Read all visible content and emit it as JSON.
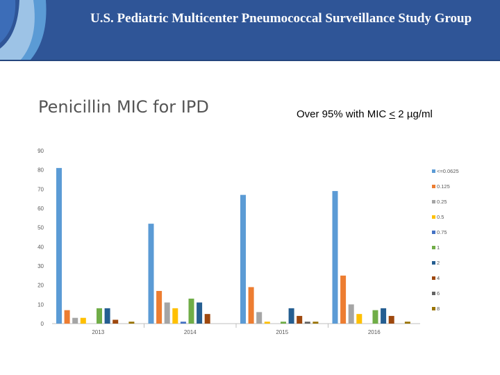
{
  "header": {
    "title": "U.S. Pediatric Multicenter Pneumococcal Surveillance Study Group"
  },
  "slide": {
    "title": "Penicillin MIC for IPD",
    "subtitle_prefix": "Over 95% with MIC ",
    "subtitle_symbol": "<",
    "subtitle_suffix": " 2 µg/ml"
  },
  "colors": {
    "banner": "#2f5597",
    "logo_light": "#9dc3e6",
    "logo_mid": "#5b9bd5"
  },
  "chart_data": {
    "type": "bar",
    "title": "",
    "xlabel": "",
    "ylabel": "",
    "ylim": [
      0,
      90
    ],
    "yticks": [
      0,
      10,
      20,
      30,
      40,
      50,
      60,
      70,
      80,
      90
    ],
    "grid": false,
    "legend_position": "right",
    "categories": [
      "2013",
      "2014",
      "2015",
      "2016"
    ],
    "series": [
      {
        "name": "<=0.0625",
        "color": "#5b9bd5",
        "values": [
          81,
          52,
          67,
          69
        ]
      },
      {
        "name": "0.125",
        "color": "#ed7d31",
        "values": [
          7,
          17,
          19,
          25
        ]
      },
      {
        "name": "0.25",
        "color": "#a5a5a5",
        "values": [
          3,
          11,
          6,
          10
        ]
      },
      {
        "name": "0.5",
        "color": "#ffc000",
        "values": [
          3,
          8,
          1,
          5
        ]
      },
      {
        "name": "0.75",
        "color": "#4472c4",
        "values": [
          0,
          1,
          0,
          0
        ]
      },
      {
        "name": "1",
        "color": "#70ad47",
        "values": [
          8,
          13,
          1,
          7
        ]
      },
      {
        "name": "2",
        "color": "#255e91",
        "values": [
          8,
          11,
          8,
          8
        ]
      },
      {
        "name": "4",
        "color": "#9e480e",
        "values": [
          2,
          5,
          4,
          4
        ]
      },
      {
        "name": "6",
        "color": "#636363",
        "values": [
          0,
          0,
          1,
          0
        ]
      },
      {
        "name": "8",
        "color": "#997300",
        "values": [
          1,
          0,
          1,
          1
        ]
      }
    ]
  }
}
